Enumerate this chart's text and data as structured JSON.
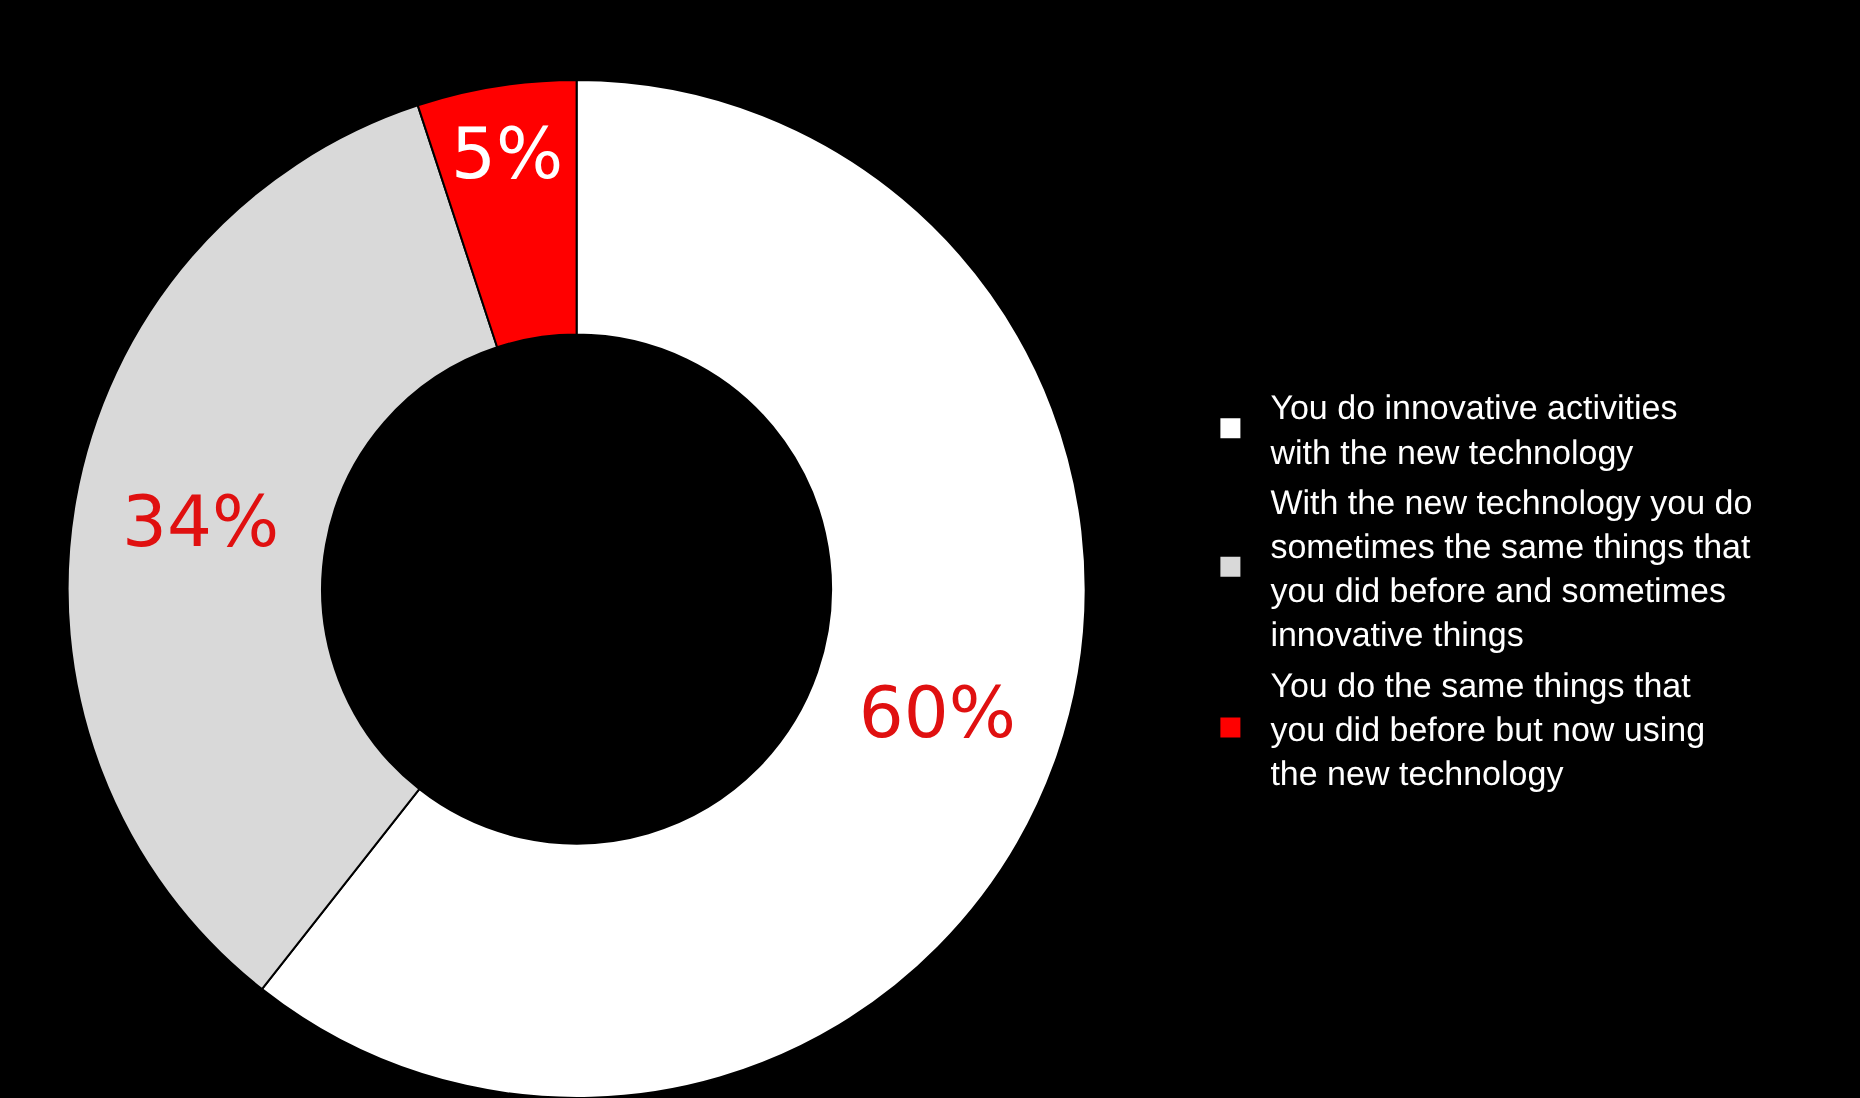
{
  "chart_data": {
    "type": "donut",
    "categories": [
      "You do innovative activities with the new technology",
      "With the new technology you do sometimes the same things that you did before and sometimes innovative things",
      "You do the same things that you did before but now using the new technology"
    ],
    "values": [
      60,
      34,
      5
    ],
    "value_labels": [
      "60%",
      "34%",
      "5%"
    ],
    "colors": [
      "#ffffff",
      "#d9d9d9",
      "#ff0000"
    ],
    "legend": "right"
  }
}
